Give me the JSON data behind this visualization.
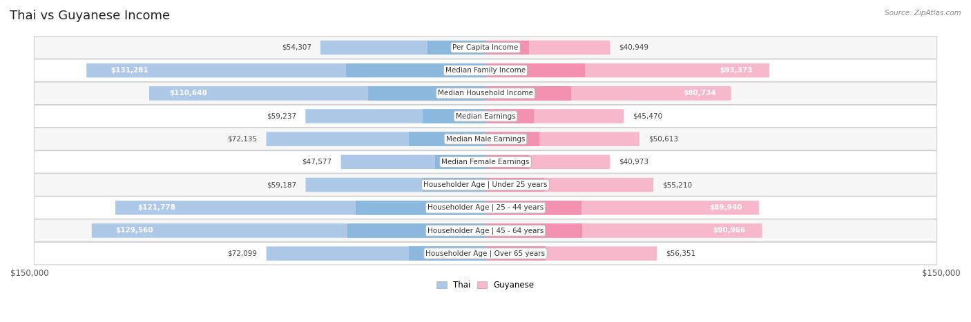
{
  "title": "Thai vs Guyanese Income",
  "source": "Source: ZipAtlas.com",
  "categories": [
    "Per Capita Income",
    "Median Family Income",
    "Median Household Income",
    "Median Earnings",
    "Median Male Earnings",
    "Median Female Earnings",
    "Householder Age | Under 25 years",
    "Householder Age | 25 - 44 years",
    "Householder Age | 45 - 64 years",
    "Householder Age | Over 65 years"
  ],
  "thai_values": [
    54307,
    131281,
    110648,
    59237,
    72135,
    47577,
    59187,
    121778,
    129560,
    72099
  ],
  "guyanese_values": [
    40949,
    93373,
    80734,
    45470,
    50613,
    40973,
    55210,
    89940,
    90966,
    56351
  ],
  "thai_color_light": "#aec9e8",
  "thai_color_dark": "#6aaad4",
  "guyanese_color_light": "#f7b8cc",
  "guyanese_color_dark": "#f06292",
  "thai_label": "Thai",
  "guyanese_label": "Guyanese",
  "max_value": 150000,
  "bar_height": 0.62,
  "title_fontsize": 13,
  "label_fontsize": 7.5,
  "value_fontsize": 7.5,
  "axis_label_fontsize": 8.5,
  "inside_label_threshold": 0.52
}
